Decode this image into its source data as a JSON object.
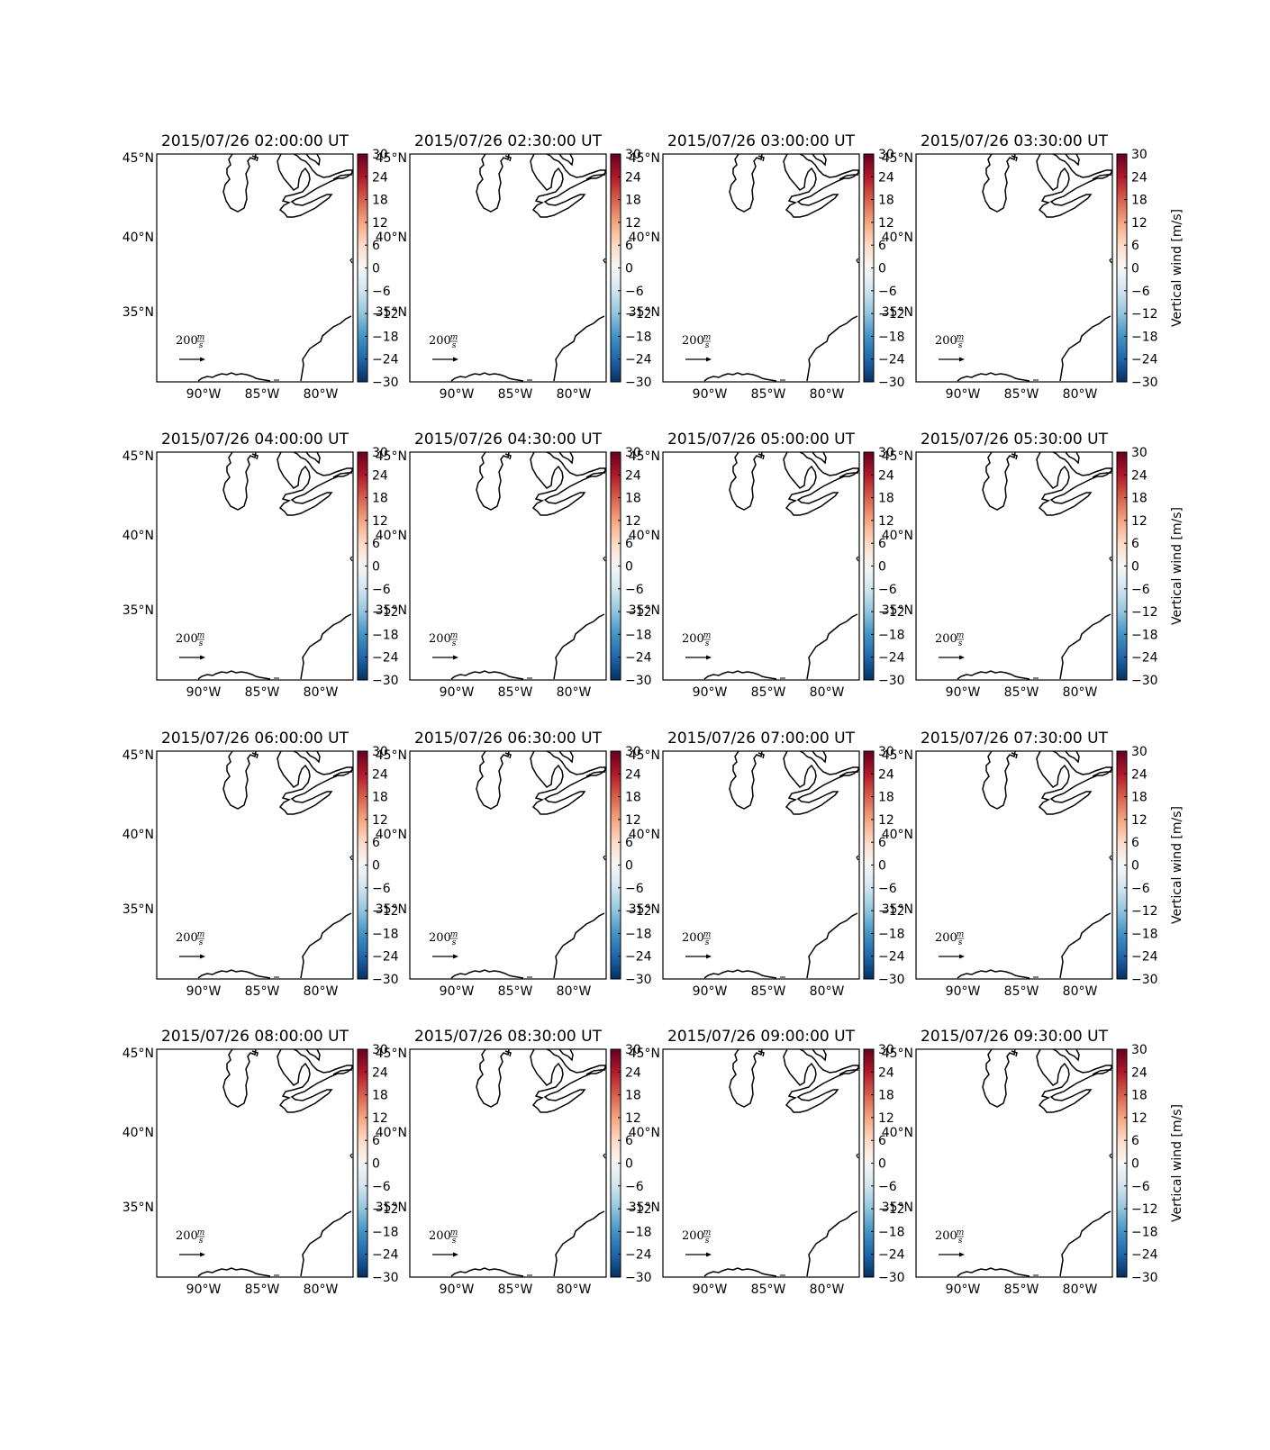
{
  "figure": {
    "colorbar_label": "Vertical wind [m/s]",
    "colorbar_ticks": [
      "30",
      "24",
      "18",
      "12",
      "6",
      "0",
      "−6",
      "−12",
      "−18",
      "−24",
      "−30"
    ],
    "lat_labels": [
      "45°N",
      "40°N",
      "35°N"
    ],
    "lon_labels": [
      "90°W",
      "85°W",
      "80°W"
    ],
    "quiver_key": {
      "value": "200",
      "unit_num": "m",
      "unit_den": "s"
    },
    "colormap": [
      "#053061",
      "#2166ac",
      "#4393c3",
      "#92c5de",
      "#d1e5f0",
      "#f7f7f7",
      "#fddbc7",
      "#f4a582",
      "#d6604d",
      "#b2182b",
      "#67001f"
    ],
    "panels": [
      {
        "title": "2015/07/26 02:00:00 UT"
      },
      {
        "title": "2015/07/26 02:30:00 UT"
      },
      {
        "title": "2015/07/26 03:00:00 UT"
      },
      {
        "title": "2015/07/26 03:30:00 UT"
      },
      {
        "title": "2015/07/26 04:00:00 UT"
      },
      {
        "title": "2015/07/26 04:30:00 UT"
      },
      {
        "title": "2015/07/26 05:00:00 UT"
      },
      {
        "title": "2015/07/26 05:30:00 UT"
      },
      {
        "title": "2015/07/26 06:00:00 UT"
      },
      {
        "title": "2015/07/26 06:30:00 UT"
      },
      {
        "title": "2015/07/26 07:00:00 UT"
      },
      {
        "title": "2015/07/26 07:30:00 UT"
      },
      {
        "title": "2015/07/26 08:00:00 UT"
      },
      {
        "title": "2015/07/26 08:30:00 UT"
      },
      {
        "title": "2015/07/26 09:00:00 UT"
      },
      {
        "title": "2015/07/26 09:30:00 UT"
      }
    ]
  }
}
